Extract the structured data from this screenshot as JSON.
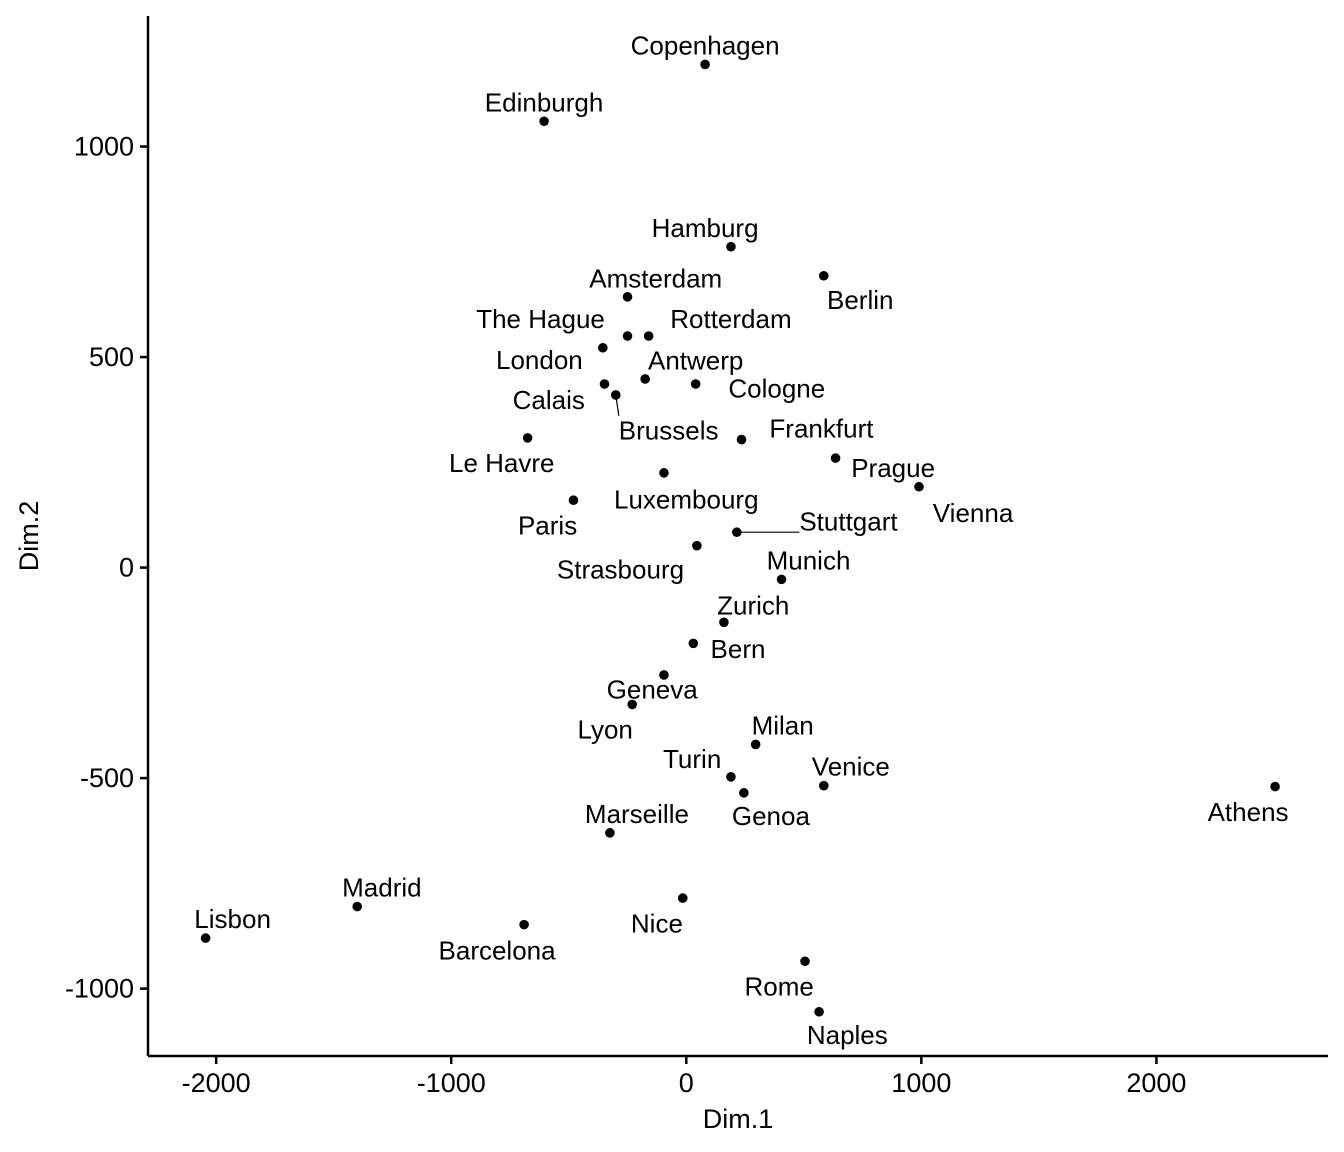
{
  "chart_data": {
    "type": "scatter",
    "xlabel": "Dim.1",
    "ylabel": "Dim.2",
    "xlim": [
      -2290,
      2730
    ],
    "ylim": [
      -1160,
      1310
    ],
    "xticks": [
      -2000,
      -1000,
      0,
      1000,
      2000
    ],
    "yticks": [
      -1000,
      -500,
      0,
      500,
      1000
    ],
    "xtick_labels": [
      "-2000",
      "-1000",
      "0",
      "1000",
      "2000"
    ],
    "ytick_labels": [
      "-1000",
      "-500",
      "0",
      "500",
      "1000"
    ],
    "grid": false,
    "legend": "none",
    "points": [
      {
        "label": "Copenhagen",
        "x": 80,
        "y": 1195,
        "lx": 80,
        "ly": 1240
      },
      {
        "label": "Edinburgh",
        "x": -605,
        "y": 1060,
        "lx": -605,
        "ly": 1105
      },
      {
        "label": "Hamburg",
        "x": 190,
        "y": 762,
        "lx": 80,
        "ly": 806
      },
      {
        "label": "Berlin",
        "x": 585,
        "y": 693,
        "lx": 740,
        "ly": 635
      },
      {
        "label": "Amsterdam",
        "x": -250,
        "y": 643,
        "lx": -130,
        "ly": 687
      },
      {
        "label": "The Hague",
        "x": -250,
        "y": 550,
        "lx": -620,
        "ly": 590
      },
      {
        "label": "Rotterdam",
        "x": -160,
        "y": 550,
        "lx": 190,
        "ly": 590
      },
      {
        "label": "London",
        "x": -355,
        "y": 522,
        "lx": -625,
        "ly": 493
      },
      {
        "label": "Antwerp",
        "x": -175,
        "y": 448,
        "lx": 40,
        "ly": 492
      },
      {
        "label": "Cologne",
        "x": 40,
        "y": 436,
        "lx": 385,
        "ly": 425
      },
      {
        "label": "Calais",
        "x": -348,
        "y": 436,
        "lx": -585,
        "ly": 398
      },
      {
        "label": "Brussels",
        "x": -300,
        "y": 410,
        "lx": -75,
        "ly": 325,
        "leader": true
      },
      {
        "label": "Frankfurt",
        "x": 235,
        "y": 304,
        "lx": 575,
        "ly": 330
      },
      {
        "label": "Le Havre",
        "x": -675,
        "y": 308,
        "lx": -785,
        "ly": 248
      },
      {
        "label": "Prague",
        "x": 635,
        "y": 260,
        "lx": 880,
        "ly": 237
      },
      {
        "label": "Luxembourg",
        "x": -95,
        "y": 225,
        "lx": 0,
        "ly": 162
      },
      {
        "label": "Vienna",
        "x": 990,
        "y": 192,
        "lx": 1220,
        "ly": 130
      },
      {
        "label": "Paris",
        "x": -480,
        "y": 160,
        "lx": -590,
        "ly": 100
      },
      {
        "label": "Stuttgart",
        "x": 215,
        "y": 84,
        "lx": 690,
        "ly": 110,
        "leader": true
      },
      {
        "label": "Strasbourg",
        "x": 45,
        "y": 52,
        "lx": -280,
        "ly": -5
      },
      {
        "label": "Munich",
        "x": 405,
        "y": -28,
        "lx": 520,
        "ly": 17
      },
      {
        "label": "Zurich",
        "x": 160,
        "y": -130,
        "lx": 285,
        "ly": -90
      },
      {
        "label": "Bern",
        "x": 30,
        "y": -180,
        "lx": 220,
        "ly": -193
      },
      {
        "label": "Geneva",
        "x": -95,
        "y": -255,
        "lx": -145,
        "ly": -290
      },
      {
        "label": "Lyon",
        "x": -230,
        "y": -325,
        "lx": -345,
        "ly": -385
      },
      {
        "label": "Milan",
        "x": 295,
        "y": -420,
        "lx": 410,
        "ly": -375
      },
      {
        "label": "Turin",
        "x": 190,
        "y": -497,
        "lx": 25,
        "ly": -455
      },
      {
        "label": "Venice",
        "x": 585,
        "y": -518,
        "lx": 700,
        "ly": -472
      },
      {
        "label": "Genoa",
        "x": 245,
        "y": -535,
        "lx": 360,
        "ly": -590
      },
      {
        "label": "Athens",
        "x": 2505,
        "y": -520,
        "lx": 2390,
        "ly": -580
      },
      {
        "label": "Marseille",
        "x": -325,
        "y": -630,
        "lx": -210,
        "ly": -585
      },
      {
        "label": "Madrid",
        "x": -1400,
        "y": -805,
        "lx": -1295,
        "ly": -760
      },
      {
        "label": "Lisbon",
        "x": -2045,
        "y": -880,
        "lx": -1930,
        "ly": -835
      },
      {
        "label": "Barcelona",
        "x": -690,
        "y": -848,
        "lx": -805,
        "ly": -910
      },
      {
        "label": "Nice",
        "x": -15,
        "y": -785,
        "lx": -125,
        "ly": -845
      },
      {
        "label": "Rome",
        "x": 505,
        "y": -935,
        "lx": 395,
        "ly": -995
      },
      {
        "label": "Naples",
        "x": 565,
        "y": -1055,
        "lx": 685,
        "ly": -1110
      }
    ]
  }
}
